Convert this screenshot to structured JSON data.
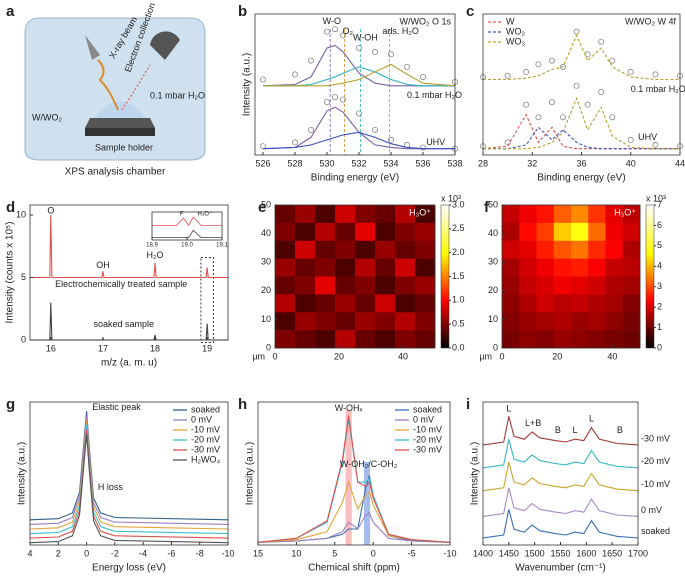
{
  "diagram": {
    "panel": "a",
    "beam": "X-ray beam",
    "collection": "Electron collection",
    "gas": "0.1 mbar H₂O",
    "sample": "W/WO₂",
    "holder": "Sample holder",
    "caption": "XPS analysis chamber"
  },
  "chart_data": [
    {
      "type": "line",
      "panel": "b",
      "title": "W/WO₂ O 1s",
      "xlabel": "Binding energy (eV)",
      "ylabel": "Intensity (a.u.)",
      "x": [
        526,
        528,
        529,
        530,
        530.5,
        531,
        532,
        533,
        534,
        535,
        536,
        538
      ],
      "xlim": [
        525.5,
        538
      ],
      "xticks": [
        526,
        528,
        530,
        532,
        534,
        536,
        538
      ],
      "ylim": [
        0,
        1.12
      ],
      "annotations": [
        "W-O",
        "O₂",
        "W-OH",
        "ads. H₂O",
        "0.1 mbar H₂O",
        "UHV"
      ],
      "series": [
        {
          "color": "#888888",
          "marker": "circle",
          "values": [
            0.6,
            0.64,
            0.75,
            0.98,
            1.0,
            0.95,
            0.85,
            0.82,
            0.8,
            0.7,
            0.62,
            0.58
          ]
        },
        {
          "color": "#7b5ea7",
          "values": [
            0.55,
            0.56,
            0.62,
            0.85,
            0.87,
            0.82,
            0.65,
            0.57,
            0.55,
            0.55,
            0.55,
            0.55
          ]
        },
        {
          "color": "#2bb3c0",
          "values": [
            0.55,
            0.55,
            0.56,
            0.6,
            0.62,
            0.65,
            0.7,
            0.66,
            0.6,
            0.56,
            0.55,
            0.55
          ]
        },
        {
          "color": "#b5a030",
          "values": [
            0.55,
            0.55,
            0.55,
            0.55,
            0.56,
            0.57,
            0.6,
            0.66,
            0.72,
            0.64,
            0.57,
            0.55
          ]
        },
        {
          "color": "#888888",
          "marker": "circle",
          "values": [
            0.07,
            0.1,
            0.2,
            0.42,
            0.46,
            0.44,
            0.33,
            0.2,
            0.12,
            0.08,
            0.06,
            0.05
          ]
        },
        {
          "color": "#7b5ea7",
          "values": [
            0.05,
            0.06,
            0.14,
            0.35,
            0.38,
            0.34,
            0.18,
            0.08,
            0.06,
            0.05,
            0.05,
            0.05
          ]
        },
        {
          "color": "#3a4fc0",
          "values": [
            0.05,
            0.06,
            0.08,
            0.12,
            0.14,
            0.16,
            0.18,
            0.14,
            0.09,
            0.06,
            0.05,
            0.05
          ]
        }
      ]
    },
    {
      "type": "line",
      "panel": "c",
      "title": "W/WO₂ W 4f",
      "xlabel": "Binding energy (eV)",
      "legend": "upper left",
      "x": [
        28,
        30,
        31.5,
        32.5,
        33.6,
        34.5,
        35.6,
        36.5,
        37.6,
        38.5,
        40,
        42,
        44
      ],
      "xlim": [
        28,
        44
      ],
      "xticks": [
        28,
        32,
        36,
        40,
        44
      ],
      "ylim": [
        0,
        1.12
      ],
      "annotations": [
        "0.1 mbar H₂O",
        "UHV"
      ],
      "series": [
        {
          "color": "#888888",
          "marker": "circle",
          "values": [
            0.62,
            0.63,
            0.66,
            0.72,
            0.75,
            0.7,
            0.98,
            0.8,
            0.9,
            0.75,
            0.66,
            0.64,
            0.63
          ]
        },
        {
          "color": "#b5a030",
          "dash": true,
          "values": [
            0.6,
            0.6,
            0.61,
            0.63,
            0.68,
            0.7,
            0.95,
            0.75,
            0.85,
            0.7,
            0.62,
            0.6,
            0.6
          ]
        },
        {
          "color": "#888888",
          "marker": "circle",
          "values": [
            0.07,
            0.1,
            0.4,
            0.3,
            0.42,
            0.3,
            0.55,
            0.4,
            0.5,
            0.3,
            0.12,
            0.08,
            0.07
          ]
        },
        {
          "name": "W",
          "color": "#d9534f",
          "dash": true,
          "values": [
            0.05,
            0.07,
            0.32,
            0.1,
            0.22,
            0.07,
            0.05,
            0.05,
            0.05,
            0.05,
            0.05,
            0.05,
            0.05
          ]
        },
        {
          "name": "WO₂",
          "color": "#3a4fc0",
          "dash": true,
          "values": [
            0.05,
            0.05,
            0.08,
            0.22,
            0.12,
            0.2,
            0.1,
            0.06,
            0.05,
            0.05,
            0.05,
            0.05,
            0.05
          ]
        },
        {
          "name": "WO₃",
          "color": "#b5a030",
          "dash": true,
          "values": [
            0.05,
            0.05,
            0.05,
            0.06,
            0.1,
            0.18,
            0.45,
            0.2,
            0.38,
            0.15,
            0.06,
            0.05,
            0.05
          ]
        }
      ]
    },
    {
      "type": "line",
      "panel": "d",
      "xlabel": "m/z (a. m. u)",
      "ylabel": "Intensity (counts x 10⁵)",
      "x": [
        15.6,
        15.98,
        16.0,
        16.02,
        16.98,
        17.0,
        17.02,
        17.98,
        18.0,
        18.02,
        18.98,
        19.0,
        19.02,
        19.4
      ],
      "xlim": [
        15.6,
        19.4
      ],
      "xticks": [
        16,
        17,
        18,
        19
      ],
      "ylim": [
        0,
        10.8
      ],
      "yticks": [
        0,
        5,
        10
      ],
      "annotations": [
        "O",
        "OH",
        "H₂O",
        "Electrochemically treated sample",
        "soaked sample"
      ],
      "series": [
        {
          "color": "#e05050",
          "values": [
            5,
            5,
            10,
            5,
            5,
            5.5,
            5,
            5,
            6.2,
            5,
            5,
            5.8,
            5,
            5
          ]
        },
        {
          "color": "#444444",
          "values": [
            0,
            0,
            3,
            0,
            0,
            0.1,
            0,
            0,
            0.4,
            0,
            0,
            1.3,
            0,
            0
          ]
        }
      ]
    },
    {
      "type": "line",
      "inset": true,
      "x": [
        18.9,
        18.97,
        18.99,
        19.005,
        19.018,
        19.04,
        19.1
      ],
      "xlim": [
        18.9,
        19.1
      ],
      "xticks": [
        18.9,
        {
          "value": 19,
          "label": "19.0"
        },
        19.1
      ],
      "ylim": [
        0,
        1.15
      ],
      "annotations": [
        "F",
        "H₃O⁺"
      ],
      "series": [
        {
          "color": "#e05050",
          "values": [
            0.6,
            0.6,
            0.9,
            0.6,
            0.95,
            0.6,
            0.6
          ]
        },
        {
          "color": "#444444",
          "values": [
            0.1,
            0.1,
            0.1,
            0.1,
            0.4,
            0.1,
            0.1
          ]
        }
      ]
    },
    {
      "type": "heatmap",
      "panel": "e",
      "label": "H₃O⁺",
      "xlabel": "µm",
      "colormap": "hot",
      "zlabel": "x 10³",
      "xlim": [
        0,
        50
      ],
      "ylim": [
        0,
        50
      ],
      "xticks": [
        0,
        20,
        40
      ],
      "yticks": [
        0,
        10,
        20,
        30,
        40,
        50
      ],
      "zlim": [
        0,
        3
      ],
      "zticks": [
        {
          "value": 0,
          "label": "0.0"
        },
        0.5,
        {
          "value": 1,
          "label": "1.0"
        },
        1.5,
        {
          "value": 2,
          "label": "2.0"
        },
        2.5,
        {
          "value": 3,
          "label": "3.0"
        }
      ],
      "z": [
        [
          0.4,
          0.6,
          0.3,
          0.8,
          0.5,
          0.4,
          0.7,
          0.3
        ],
        [
          0.5,
          0.3,
          0.7,
          0.4,
          0.9,
          0.3,
          0.5,
          0.6
        ],
        [
          0.3,
          0.8,
          0.4,
          0.5,
          0.3,
          0.6,
          0.4,
          0.5
        ],
        [
          0.6,
          0.4,
          0.5,
          0.3,
          0.7,
          0.4,
          0.8,
          0.3
        ],
        [
          0.4,
          0.5,
          0.9,
          0.4,
          0.5,
          0.3,
          0.5,
          0.6
        ],
        [
          0.7,
          0.3,
          0.4,
          0.6,
          0.4,
          0.8,
          0.3,
          0.4
        ],
        [
          0.3,
          0.6,
          0.5,
          0.4,
          0.6,
          0.5,
          0.7,
          0.5
        ],
        [
          0.5,
          0.4,
          0.3,
          0.7,
          0.4,
          0.3,
          0.5,
          0.4
        ]
      ]
    },
    {
      "type": "heatmap",
      "panel": "f",
      "label": "H₃O⁺",
      "xlabel": "µm",
      "colormap": "hot",
      "zlabel": "x 10³",
      "xlim": [
        0,
        50
      ],
      "ylim": [
        0,
        50
      ],
      "xticks": [
        0,
        20,
        40
      ],
      "yticks": [
        0,
        10,
        20,
        30,
        40,
        50
      ],
      "zlim": [
        0,
        7
      ],
      "zticks": [
        0,
        1,
        2,
        3,
        4,
        5,
        6,
        7
      ],
      "z": [
        [
          1.8,
          2.2,
          2.5,
          3.2,
          3.6,
          2.8,
          2.1,
          1.7
        ],
        [
          1.6,
          2.4,
          2.9,
          4.2,
          4.8,
          3.3,
          2.2,
          1.9
        ],
        [
          1.9,
          2.1,
          2.6,
          3.1,
          3.4,
          2.7,
          2.3,
          1.6
        ],
        [
          1.5,
          1.9,
          2.2,
          2.5,
          2.6,
          2.3,
          1.8,
          1.7
        ],
        [
          1.4,
          1.8,
          2.0,
          2.2,
          2.1,
          1.9,
          1.6,
          1.5
        ],
        [
          1.3,
          1.6,
          1.9,
          1.7,
          1.8,
          1.6,
          1.5,
          1.2
        ],
        [
          1.2,
          1.4,
          1.5,
          1.6,
          1.4,
          1.5,
          1.3,
          1.1
        ],
        [
          1.1,
          1.3,
          1.2,
          1.4,
          1.3,
          1.2,
          1.1,
          1.0
        ]
      ]
    },
    {
      "type": "line",
      "panel": "g",
      "xlabel": "Energy loss (eV)",
      "ylabel": "Intensity (a.u.)",
      "legend": "upper right",
      "x": [
        4,
        2,
        1,
        0.5,
        0.2,
        0,
        -0.2,
        -0.5,
        -1,
        -2,
        -10
      ],
      "xlim": [
        4,
        -10
      ],
      "xticks": [
        4,
        2,
        0,
        -2,
        -4,
        -6,
        -8,
        -10
      ],
      "ylim": [
        0,
        1.25
      ],
      "annotations": [
        "Elastic peak",
        "H loss"
      ],
      "series": [
        {
          "name": "soaked",
          "color": "#2f5f8a",
          "values": [
            0.22,
            0.23,
            0.28,
            0.46,
            0.88,
            1.17,
            0.84,
            0.41,
            0.28,
            0.24,
            0.22
          ]
        },
        {
          "name": "0 mV",
          "color": "#9b7fc1",
          "values": [
            0.18,
            0.19,
            0.24,
            0.42,
            0.84,
            1.13,
            0.8,
            0.37,
            0.24,
            0.2,
            0.18
          ]
        },
        {
          "name": "-10 mV",
          "color": "#e4a33a",
          "values": [
            0.14,
            0.15,
            0.2,
            0.38,
            0.8,
            1.09,
            0.76,
            0.33,
            0.2,
            0.16,
            0.14
          ]
        },
        {
          "name": "-20 mV",
          "color": "#3fbfcf",
          "values": [
            0.1,
            0.11,
            0.16,
            0.34,
            0.76,
            1.05,
            0.72,
            0.29,
            0.16,
            0.12,
            0.1
          ]
        },
        {
          "name": "-30 mV",
          "color": "#d9534f",
          "values": [
            0.06,
            0.07,
            0.12,
            0.3,
            0.72,
            1.01,
            0.68,
            0.25,
            0.12,
            0.08,
            0.06
          ]
        },
        {
          "name": "H₂WO₄",
          "color": "#555555",
          "values": [
            0.02,
            0.03,
            0.08,
            0.26,
            0.68,
            0.97,
            0.64,
            0.21,
            0.08,
            0.04,
            0.02
          ]
        }
      ]
    },
    {
      "type": "line",
      "panel": "h",
      "xlabel": "Chemical shift (ppm)",
      "ylabel": "Intensity (a.u.)",
      "legend": "upper right",
      "x": [
        15,
        10,
        6,
        4,
        3.2,
        2,
        1,
        0.5,
        0,
        -2,
        -5,
        -10
      ],
      "xlim": [
        15,
        -10
      ],
      "xticks": [
        15,
        10,
        5,
        0,
        -5,
        -10
      ],
      "ylim": [
        -0.02,
        1.05
      ],
      "annotations": [
        "W-OHₓ",
        "W-OH₂/C-OH₂"
      ],
      "series": [
        {
          "name": "soaked",
          "color": "#3a6fb0",
          "values": [
            0,
            0.01,
            0.03,
            0.06,
            0.1,
            0.1,
            0.4,
            0.5,
            0.35,
            0.05,
            0.01,
            0
          ]
        },
        {
          "name": "0 mV",
          "color": "#9b7fc1",
          "values": [
            0,
            0.01,
            0.03,
            0.08,
            0.15,
            0.1,
            0.2,
            0.22,
            0.15,
            0.03,
            0.01,
            0
          ]
        },
        {
          "name": "-10 mV",
          "color": "#e4a33a",
          "values": [
            0,
            0.02,
            0.08,
            0.3,
            0.45,
            0.25,
            0.35,
            0.38,
            0.28,
            0.05,
            0.02,
            0
          ]
        },
        {
          "name": "-20 mV",
          "color": "#3fbfcf",
          "values": [
            0,
            0.03,
            0.15,
            0.6,
            0.92,
            0.45,
            0.45,
            0.48,
            0.35,
            0.06,
            0.02,
            0
          ]
        },
        {
          "name": "-30 mV",
          "color": "#d9534f",
          "values": [
            0,
            0.03,
            0.16,
            0.62,
            0.95,
            0.45,
            0.42,
            0.45,
            0.33,
            0.06,
            0.02,
            0
          ]
        }
      ]
    },
    {
      "type": "line",
      "panel": "i",
      "xlabel": "Wavenumber (cm⁻¹)",
      "ylabel": "Intensity (a.u.)",
      "legend": "end",
      "x": [
        1400,
        1440,
        1450,
        1460,
        1480,
        1495,
        1510,
        1540,
        1560,
        1578,
        1595,
        1610,
        1625,
        1660,
        1700
      ],
      "xlim": [
        1400,
        1700
      ],
      "xticks": [
        1400,
        1450,
        1500,
        1550,
        1600,
        1650,
        1700
      ],
      "ylim": [
        0,
        1
      ],
      "annotations": [
        "L",
        "L+B",
        "B",
        "L",
        "L",
        "B"
      ],
      "series": [
        {
          "name": "soaked",
          "color": "#3a6fb0",
          "values": [
            0.05,
            0.07,
            0.25,
            0.11,
            0.09,
            0.14,
            0.1,
            0.08,
            0.07,
            0.09,
            0.08,
            0.17,
            0.09,
            0.06,
            0.05
          ]
        },
        {
          "name": "0 mV",
          "color": "#a58ac6",
          "values": [
            0.2,
            0.22,
            0.4,
            0.26,
            0.24,
            0.29,
            0.25,
            0.23,
            0.22,
            0.24,
            0.23,
            0.32,
            0.24,
            0.21,
            0.2
          ]
        },
        {
          "name": "-10 mV",
          "color": "#c9a227",
          "values": [
            0.38,
            0.4,
            0.58,
            0.44,
            0.42,
            0.47,
            0.43,
            0.41,
            0.4,
            0.42,
            0.41,
            0.5,
            0.42,
            0.39,
            0.38
          ]
        },
        {
          "name": "-20 mV",
          "color": "#39b7c9",
          "values": [
            0.54,
            0.56,
            0.74,
            0.6,
            0.58,
            0.63,
            0.59,
            0.57,
            0.56,
            0.58,
            0.57,
            0.66,
            0.58,
            0.55,
            0.54
          ]
        },
        {
          "name": "-30 mV",
          "color": "#a33a3a",
          "values": [
            0.7,
            0.72,
            0.9,
            0.76,
            0.74,
            0.79,
            0.75,
            0.73,
            0.72,
            0.74,
            0.73,
            0.82,
            0.74,
            0.71,
            0.7
          ]
        }
      ]
    }
  ]
}
